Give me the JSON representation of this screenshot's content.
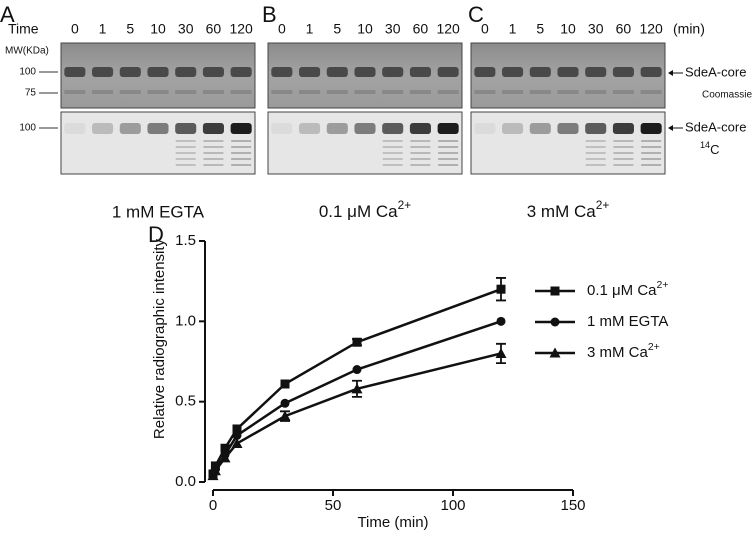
{
  "panel_labels": [
    "A",
    "B",
    "C",
    "D"
  ],
  "gels": {
    "time_label": "Time",
    "unit_label": "(min)",
    "mw_label": "MW(KDa)",
    "markers_top": [
      "100",
      "75"
    ],
    "markers_bottom": [
      "100"
    ],
    "band_label_top": "SdeA-core",
    "stain_label": "Coomassie",
    "band_label_bottom": "SdeA-core",
    "radio_label": "14C",
    "panels": [
      {
        "times": [
          0,
          1,
          5,
          10,
          30,
          60,
          120
        ],
        "condition": "1 mM EGTA"
      },
      {
        "times": [
          0,
          1,
          5,
          10,
          30,
          60,
          120
        ],
        "condition": "0.1 μM Ca2+"
      },
      {
        "times": [
          0,
          1,
          5,
          10,
          30,
          60,
          120
        ],
        "condition": "3 mM Ca2+"
      }
    ]
  },
  "chart_data": {
    "type": "line",
    "x_label": "Time (min)",
    "y_label": "Relative radiographic intensity",
    "x": [
      0,
      1,
      5,
      10,
      30,
      60,
      120
    ],
    "series": [
      {
        "name": "0.1 μM Ca2+",
        "color": "#111111",
        "marker": "square",
        "values": [
          0.05,
          0.1,
          0.21,
          0.33,
          0.61,
          0.87,
          1.2
        ],
        "errors": [
          null,
          null,
          null,
          null,
          null,
          0.02,
          0.07
        ]
      },
      {
        "name": "1 mM EGTA",
        "color": "#111111",
        "marker": "circle",
        "values": [
          0.05,
          0.08,
          0.17,
          0.29,
          0.49,
          0.7,
          1.0
        ],
        "errors": [
          null,
          null,
          null,
          null,
          null,
          null,
          null
        ]
      },
      {
        "name": "3 mM Ca2+",
        "color": "#111111",
        "marker": "triangle",
        "values": [
          0.04,
          0.07,
          0.15,
          0.24,
          0.41,
          0.58,
          0.8
        ],
        "errors": [
          null,
          null,
          null,
          null,
          0.03,
          0.05,
          0.06
        ]
      }
    ],
    "xlim": [
      0,
      150
    ],
    "xticks": [
      0,
      50,
      100,
      150
    ],
    "ylim": [
      0,
      1.5
    ],
    "yticks": [
      {
        "value": 0,
        "label": "0.0"
      },
      0.5,
      {
        "value": 1,
        "label": "1.0"
      },
      1.5
    ],
    "legend": "upper right"
  }
}
